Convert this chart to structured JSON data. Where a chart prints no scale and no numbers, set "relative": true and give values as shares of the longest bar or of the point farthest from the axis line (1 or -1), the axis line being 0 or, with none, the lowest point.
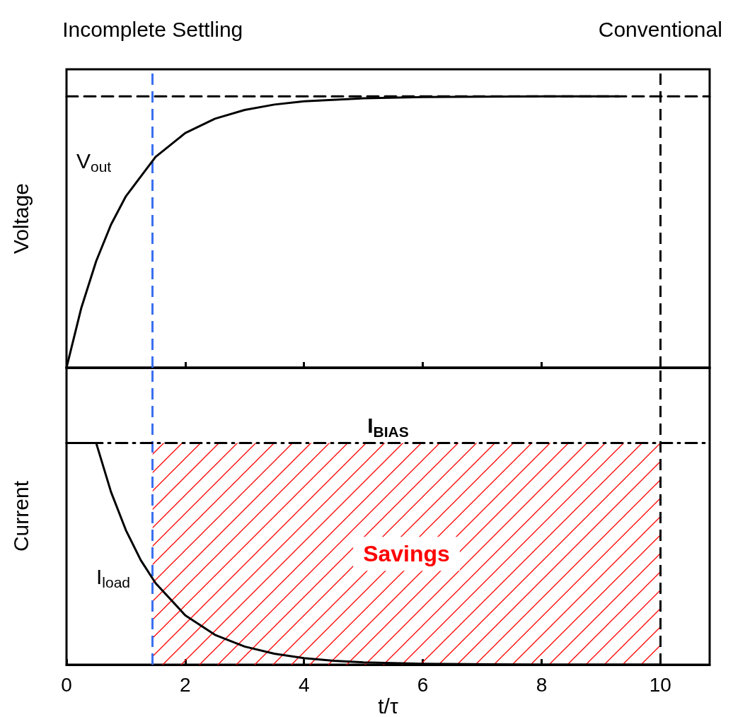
{
  "chart_data": [
    {
      "type": "line",
      "relative": true,
      "ylabel": "Voltage",
      "xlim": [
        0,
        10.83
      ],
      "xticks": [
        0,
        2,
        4,
        6,
        8,
        10
      ],
      "tick_labels": false,
      "grid": false,
      "marker": "none",
      "series": [
        {
          "color": "#000000",
          "x": [
            0,
            0.25,
            0.5,
            0.75,
            1,
            1.5,
            2,
            2.5,
            3,
            3.5,
            4,
            5,
            6,
            7,
            8,
            9.3
          ],
          "values": [
            0,
            0.221,
            0.393,
            0.528,
            0.632,
            0.777,
            0.865,
            0.918,
            0.95,
            0.97,
            0.982,
            0.993,
            0.998,
            0.999,
            1,
            1
          ]
        },
        {
          "color": "#000000",
          "line_style": "dashed",
          "x": [
            0,
            10.83
          ],
          "values": [
            1,
            1
          ]
        }
      ],
      "ref_lines": [
        {
          "axis": "x",
          "value": 1.45,
          "label": "Incomplete Settling",
          "color": "#3a6ff0",
          "line_style": "dashed"
        },
        {
          "axis": "x",
          "value": 10,
          "label": "Conventional",
          "color": "#000000",
          "line_style": "dashed"
        }
      ],
      "annotations": [
        "V$_{out}$"
      ]
    },
    {
      "type": "line",
      "relative": true,
      "ylabel": "Current",
      "xlabel": "t/τ",
      "xlim": [
        0,
        10.83
      ],
      "xticks": [
        0,
        2,
        4,
        6,
        8,
        10
      ],
      "tick_labels": "x",
      "grid": false,
      "marker": "none",
      "series": [
        {
          "color": "#000000",
          "x": [
            0,
            0.5,
            0.75,
            1,
            1.25,
            1.5,
            2,
            2.5,
            3,
            3.5,
            4,
            4.5,
            5,
            6,
            8,
            10
          ],
          "values": [
            1,
            1,
            0.779,
            0.607,
            0.472,
            0.368,
            0.223,
            0.135,
            0.082,
            0.05,
            0.03,
            0.018,
            0.011,
            0.004,
            0,
            0
          ]
        },
        {
          "name": "I$_{BIAS}$",
          "color": "#000000",
          "line_style": "dashed",
          "x": [
            0,
            10.83
          ],
          "values": [
            1,
            1
          ]
        }
      ],
      "ref_lines": [
        {
          "axis": "x",
          "value": 1.45,
          "color": "#3a6ff0",
          "line_style": "dashed"
        },
        {
          "axis": "x",
          "value": 10,
          "color": "#000000",
          "line_style": "dashed"
        }
      ],
      "bands": [
        {
          "axis": "x",
          "from": 1.45,
          "to": 10,
          "label": "Savings",
          "color": "#ff0000"
        }
      ],
      "annotations": [
        "I$_{load}$"
      ]
    }
  ]
}
